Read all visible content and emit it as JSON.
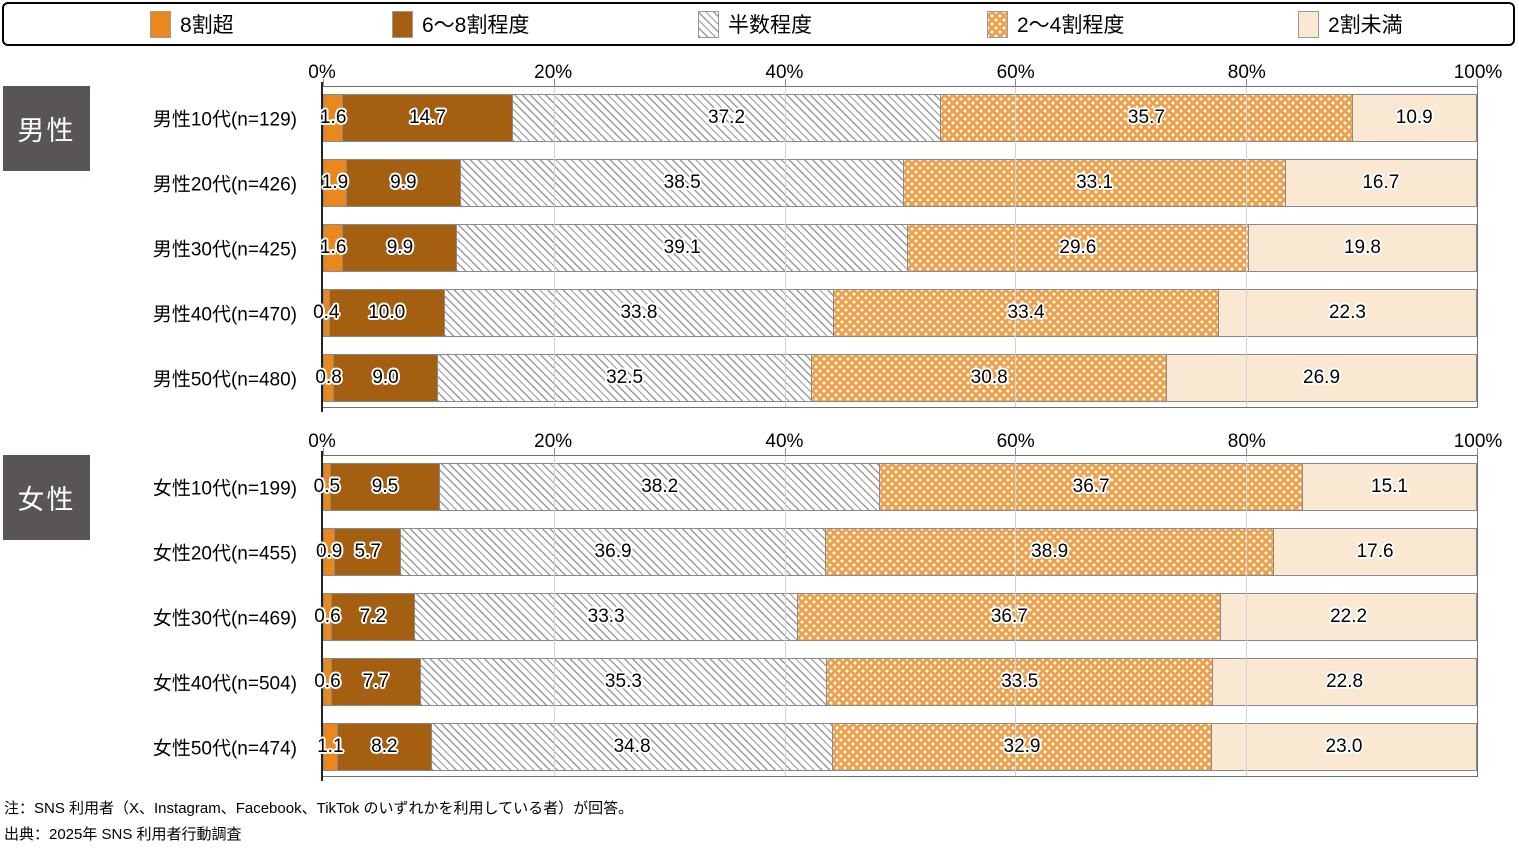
{
  "legend": {
    "items": [
      {
        "key": "over80",
        "label": "8割超"
      },
      {
        "key": "b60to80",
        "label": "6〜8割程度"
      },
      {
        "key": "half",
        "label": "半数程度"
      },
      {
        "key": "b20to40",
        "label": "2〜4割程度"
      },
      {
        "key": "under20",
        "label": "2割未満"
      }
    ]
  },
  "colors": {
    "over80": "#E8881E",
    "b60to80": "#A55F11",
    "half_hatch_line": "#9A9A9A",
    "b20to40_dotted": "#EDA04A",
    "under20": "#FAE8D2",
    "section_box": "#595557"
  },
  "chart_data": {
    "type": "bar",
    "stacked": true,
    "orientation": "horizontal",
    "unit": "%",
    "xlim": [
      0,
      100
    ],
    "grid": true,
    "legend_position": "top",
    "axis_ticks": [
      "0%",
      "20%",
      "40%",
      "60%",
      "80%",
      "100%"
    ],
    "series_keys": [
      "over80",
      "b60to80",
      "half",
      "b20to40",
      "under20"
    ],
    "series_labels": [
      "8割超",
      "6〜8割程度",
      "半数程度",
      "2〜4割程度",
      "2割未満"
    ],
    "sections": [
      {
        "id": "male",
        "label": "男性",
        "rows": [
          {
            "label": "男性10代(n=129)",
            "values": [
              1.6,
              14.7,
              37.2,
              35.7,
              10.9
            ]
          },
          {
            "label": "男性20代(n=426)",
            "values": [
              1.9,
              9.9,
              38.5,
              33.1,
              16.7
            ]
          },
          {
            "label": "男性30代(n=425)",
            "values": [
              1.6,
              9.9,
              39.1,
              29.6,
              19.8
            ]
          },
          {
            "label": "男性40代(n=470)",
            "values": [
              0.4,
              10.0,
              33.8,
              33.4,
              22.3
            ]
          },
          {
            "label": "男性50代(n=480)",
            "values": [
              0.8,
              9.0,
              32.5,
              30.8,
              26.9
            ]
          }
        ]
      },
      {
        "id": "female",
        "label": "女性",
        "rows": [
          {
            "label": "女性10代(n=199)",
            "values": [
              0.5,
              9.5,
              38.2,
              36.7,
              15.1
            ]
          },
          {
            "label": "女性20代(n=455)",
            "values": [
              0.9,
              5.7,
              36.9,
              38.9,
              17.6
            ]
          },
          {
            "label": "女性30代(n=469)",
            "values": [
              0.6,
              7.2,
              33.3,
              36.7,
              22.2
            ]
          },
          {
            "label": "女性40代(n=504)",
            "values": [
              0.6,
              7.7,
              35.3,
              33.5,
              22.8
            ]
          },
          {
            "label": "女性50代(n=474)",
            "values": [
              1.1,
              8.2,
              34.8,
              32.9,
              23.0
            ]
          }
        ]
      }
    ]
  },
  "notes": {
    "note": "注：SNS 利用者（X、Instagram、Facebook、TikTok のいずれかを利用している者）が回答。",
    "source": "出典：2025年 SNS 利用者行動調査"
  }
}
